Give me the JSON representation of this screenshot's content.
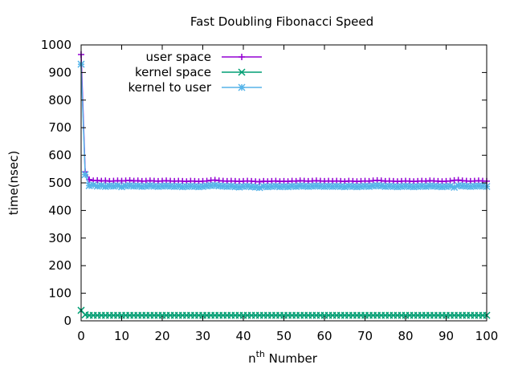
{
  "chart_data": {
    "type": "line",
    "title": "Fast Doubling Fibonacci Speed",
    "xlabel_base": "n",
    "xlabel_sup": "th",
    "xlabel_rest": " Number",
    "ylabel": "time(nsec)",
    "xlim": [
      0,
      100
    ],
    "ylim": [
      0,
      1000
    ],
    "xticks": [
      0,
      10,
      20,
      30,
      40,
      50,
      60,
      70,
      80,
      90,
      100
    ],
    "yticks": [
      0,
      100,
      200,
      300,
      400,
      500,
      600,
      700,
      800,
      900,
      1000
    ],
    "grid": false,
    "legend_position": "top-left",
    "series": [
      {
        "name": "user space",
        "color": "#9400d3",
        "marker": "plus",
        "x": [
          0,
          1,
          2,
          3,
          4,
          5,
          6,
          7,
          8,
          9,
          10,
          11,
          12,
          13,
          14,
          15,
          16,
          17,
          18,
          19,
          20,
          21,
          22,
          23,
          24,
          25,
          26,
          27,
          28,
          29,
          30,
          31,
          32,
          33,
          34,
          35,
          36,
          37,
          38,
          39,
          40,
          41,
          42,
          43,
          44,
          45,
          46,
          47,
          48,
          49,
          50,
          51,
          52,
          53,
          54,
          55,
          56,
          57,
          58,
          59,
          60,
          61,
          62,
          63,
          64,
          65,
          66,
          67,
          68,
          69,
          70,
          71,
          72,
          73,
          74,
          75,
          76,
          77,
          78,
          79,
          80,
          81,
          82,
          83,
          84,
          85,
          86,
          87,
          88,
          89,
          90,
          91,
          92,
          93,
          94,
          95,
          96,
          97,
          98,
          99,
          100
        ],
        "values": [
          965,
          540,
          512,
          508,
          509,
          507,
          508,
          506,
          507,
          508,
          507,
          508,
          509,
          507,
          508,
          506,
          507,
          508,
          507,
          506,
          507,
          508,
          507,
          506,
          507,
          506,
          505,
          507,
          506,
          505,
          506,
          507,
          509,
          510,
          508,
          507,
          506,
          507,
          506,
          505,
          506,
          507,
          506,
          505,
          504,
          506,
          505,
          506,
          507,
          505,
          506,
          505,
          507,
          506,
          508,
          507,
          506,
          507,
          508,
          507,
          506,
          507,
          506,
          507,
          506,
          505,
          507,
          506,
          505,
          506,
          507,
          506,
          508,
          509,
          508,
          506,
          507,
          506,
          505,
          506,
          507,
          506,
          505,
          506,
          507,
          506,
          508,
          507,
          506,
          505,
          506,
          507,
          509,
          510,
          508,
          507,
          506,
          507,
          508,
          507,
          506
        ]
      },
      {
        "name": "kernel space",
        "color": "#009e73",
        "marker": "cross",
        "x": [
          0,
          1,
          2,
          3,
          4,
          5,
          6,
          7,
          8,
          9,
          10,
          11,
          12,
          13,
          14,
          15,
          16,
          17,
          18,
          19,
          20,
          21,
          22,
          23,
          24,
          25,
          26,
          27,
          28,
          29,
          30,
          31,
          32,
          33,
          34,
          35,
          36,
          37,
          38,
          39,
          40,
          41,
          42,
          43,
          44,
          45,
          46,
          47,
          48,
          49,
          50,
          51,
          52,
          53,
          54,
          55,
          56,
          57,
          58,
          59,
          60,
          61,
          62,
          63,
          64,
          65,
          66,
          67,
          68,
          69,
          70,
          71,
          72,
          73,
          74,
          75,
          76,
          77,
          78,
          79,
          80,
          81,
          82,
          83,
          84,
          85,
          86,
          87,
          88,
          89,
          90,
          91,
          92,
          93,
          94,
          95,
          96,
          97,
          98,
          99,
          100
        ],
        "values": [
          38,
          22,
          20,
          20,
          20,
          20,
          20,
          20,
          20,
          20,
          20,
          20,
          20,
          20,
          20,
          20,
          20,
          20,
          20,
          20,
          20,
          20,
          20,
          20,
          20,
          20,
          20,
          20,
          20,
          20,
          20,
          20,
          20,
          20,
          20,
          20,
          20,
          20,
          20,
          20,
          20,
          20,
          20,
          20,
          20,
          20,
          20,
          20,
          20,
          20,
          20,
          20,
          20,
          20,
          20,
          20,
          20,
          20,
          20,
          20,
          20,
          20,
          20,
          20,
          20,
          20,
          20,
          20,
          20,
          20,
          20,
          20,
          20,
          20,
          20,
          20,
          20,
          20,
          20,
          20,
          20,
          20,
          20,
          20,
          20,
          20,
          20,
          20,
          20,
          20,
          20,
          20,
          20,
          20,
          20,
          20,
          20,
          20,
          20,
          20,
          20
        ]
      },
      {
        "name": "kernel to user",
        "color": "#56b4e9",
        "marker": "star",
        "x": [
          0,
          1,
          2,
          3,
          4,
          5,
          6,
          7,
          8,
          9,
          10,
          11,
          12,
          13,
          14,
          15,
          16,
          17,
          18,
          19,
          20,
          21,
          22,
          23,
          24,
          25,
          26,
          27,
          28,
          29,
          30,
          31,
          32,
          33,
          34,
          35,
          36,
          37,
          38,
          39,
          40,
          41,
          42,
          43,
          44,
          45,
          46,
          47,
          48,
          49,
          50,
          51,
          52,
          53,
          54,
          55,
          56,
          57,
          58,
          59,
          60,
          61,
          62,
          63,
          64,
          65,
          66,
          67,
          68,
          69,
          70,
          71,
          72,
          73,
          74,
          75,
          76,
          77,
          78,
          79,
          80,
          81,
          82,
          83,
          84,
          85,
          86,
          87,
          88,
          89,
          90,
          91,
          92,
          93,
          94,
          95,
          96,
          97,
          98,
          99,
          100
        ],
        "values": [
          930,
          530,
          490,
          492,
          488,
          490,
          487,
          489,
          488,
          490,
          486,
          489,
          490,
          488,
          489,
          487,
          488,
          490,
          488,
          487,
          488,
          489,
          488,
          487,
          488,
          486,
          487,
          488,
          487,
          486,
          487,
          489,
          490,
          491,
          489,
          488,
          487,
          488,
          486,
          485,
          487,
          488,
          486,
          485,
          483,
          487,
          486,
          487,
          488,
          486,
          487,
          486,
          488,
          487,
          489,
          488,
          487,
          488,
          489,
          488,
          487,
          488,
          487,
          488,
          487,
          486,
          488,
          487,
          486,
          487,
          488,
          487,
          489,
          490,
          489,
          487,
          488,
          487,
          486,
          487,
          488,
          487,
          486,
          487,
          488,
          487,
          489,
          488,
          487,
          486,
          487,
          488,
          484,
          490,
          489,
          488,
          487,
          488,
          489,
          488,
          487
        ]
      }
    ]
  }
}
